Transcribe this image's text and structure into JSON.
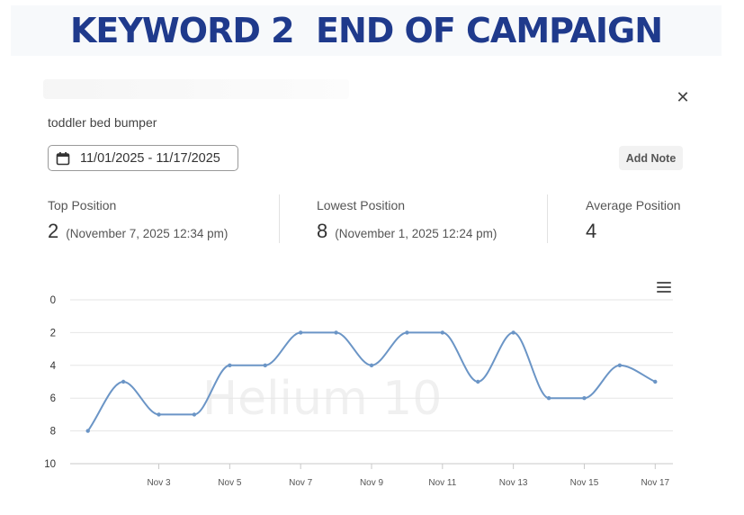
{
  "banner": {
    "title": "KEYWORD 2  END OF CAMPAIGN"
  },
  "keyword": "toddler bed bumper",
  "date_range": "11/01/2025 - 11/17/2025",
  "add_note_label": "Add Note",
  "stats": {
    "top": {
      "label": "Top Position",
      "value": "2",
      "date": "(November 7, 2025 12:34 pm)"
    },
    "lowest": {
      "label": "Lowest Position",
      "value": "8",
      "date": "(November 1, 2025 12:24 pm)"
    },
    "average": {
      "label": "Average Position",
      "value": "4"
    }
  },
  "watermark": "Helium 10",
  "colors": {
    "line": "#6b95c6",
    "banner": "#1f3a8c",
    "grid": "#e6e6e6"
  },
  "chart_data": {
    "type": "line",
    "title": "",
    "xlabel": "",
    "ylabel": "",
    "y_reversed": true,
    "ylim": [
      0,
      10
    ],
    "y_ticks": [
      "0",
      "2",
      "4",
      "6",
      "8",
      "10"
    ],
    "x_tick_labels": [
      "Nov 3",
      "Nov 5",
      "Nov 7",
      "Nov 9",
      "Nov 11",
      "Nov 13",
      "Nov 15",
      "Nov 17"
    ],
    "x_days": [
      1,
      2,
      3,
      4,
      5,
      6,
      7,
      8,
      9,
      10,
      11,
      12,
      13,
      14,
      15,
      16,
      17
    ],
    "series": [
      {
        "values": [
          8,
          5,
          7,
          7,
          4,
          4,
          2,
          2,
          4,
          2,
          2,
          5,
          2,
          6,
          6,
          4,
          5
        ]
      }
    ],
    "grid": true,
    "legend": "none"
  }
}
